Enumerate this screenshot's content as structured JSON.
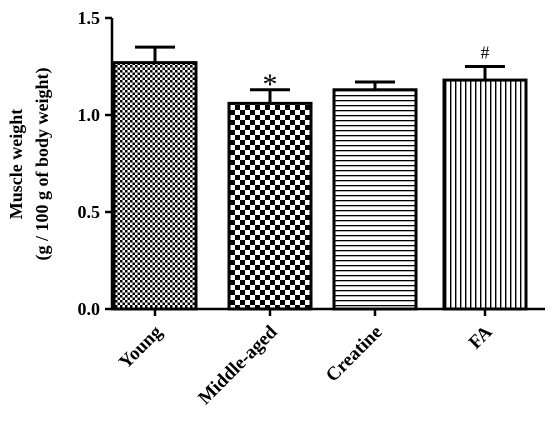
{
  "chart_data": {
    "type": "bar",
    "title": "",
    "xlabel": "",
    "ylabel_lines": [
      "Muscle weight",
      "(g / 100 g of body weight)"
    ],
    "ylim": [
      0,
      1.5
    ],
    "yticks": [
      0.0,
      0.5,
      1.0,
      1.5
    ],
    "ytick_labels": [
      "0.0",
      "0.5",
      "1.0",
      "1.5"
    ],
    "categories": [
      "Young",
      "Middle-aged",
      "Creatine",
      "FA"
    ],
    "values": [
      1.27,
      1.06,
      1.13,
      1.18
    ],
    "errors": [
      0.08,
      0.07,
      0.04,
      0.07
    ],
    "patterns": [
      "fine-checker",
      "checkerboard",
      "horizontal-lines",
      "vertical-lines"
    ],
    "annotations": [
      "",
      "*",
      "",
      "#"
    ],
    "grid": false,
    "legend": "none",
    "colors": {
      "stroke": "#000000",
      "fill": "#ffffff"
    }
  }
}
